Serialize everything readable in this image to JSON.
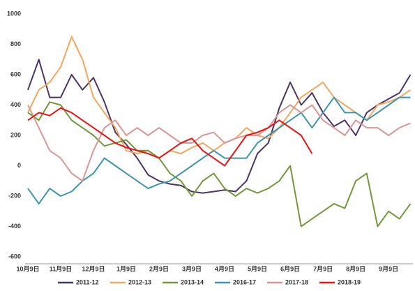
{
  "chart_data": {
    "type": "line",
    "categories": [
      "10月9日",
      null,
      null,
      "11月9日",
      null,
      null,
      "12月9日",
      null,
      null,
      "1月9日",
      null,
      null,
      "2月9日",
      null,
      null,
      "3月9日",
      null,
      null,
      "4月9日",
      null,
      null,
      "5月9日",
      null,
      null,
      "6月9日",
      null,
      null,
      "7月9日",
      null,
      null,
      "8月9日",
      null,
      null,
      "9月9日",
      null,
      null
    ],
    "series": [
      {
        "name": "2011-12",
        "color": "#4b3469",
        "values": [
          500,
          700,
          450,
          450,
          600,
          500,
          580,
          420,
          220,
          140,
          50,
          -60,
          -100,
          -120,
          -130,
          -170,
          -180,
          -170,
          -160,
          -170,
          -100,
          80,
          150,
          380,
          550,
          400,
          480,
          350,
          260,
          300,
          200,
          350,
          400,
          440,
          480,
          600
        ]
      },
      {
        "name": "2012-13",
        "color": "#f5a55c",
        "values": [
          350,
          500,
          550,
          650,
          850,
          700,
          450,
          350,
          250,
          100,
          80,
          100,
          50,
          100,
          80,
          120,
          150,
          100,
          150,
          180,
          250,
          200,
          180,
          250,
          350,
          450,
          500,
          550,
          450,
          400,
          350,
          300,
          400,
          420,
          450,
          500
        ]
      },
      {
        "name": "2013-14",
        "color": "#71993a",
        "values": [
          350,
          300,
          420,
          400,
          300,
          250,
          200,
          130,
          150,
          170,
          100,
          100,
          50,
          -50,
          -100,
          -200,
          -100,
          -50,
          -150,
          -200,
          -150,
          -180,
          -150,
          -100,
          0,
          -400,
          -350,
          -300,
          -250,
          -280,
          -100,
          -50,
          -400,
          -300,
          -350,
          -250
        ]
      },
      {
        "name": "2016-17",
        "color": "#3a95ad",
        "values": [
          -150,
          -250,
          -150,
          -200,
          -170,
          -100,
          -50,
          50,
          0,
          -50,
          -100,
          -150,
          -120,
          -100,
          -50,
          0,
          50,
          100,
          50,
          50,
          50,
          150,
          200,
          250,
          300,
          350,
          250,
          350,
          450,
          350,
          350,
          300,
          350,
          400,
          450,
          450
        ]
      },
      {
        "name": "2017-18",
        "color": "#d99694",
        "values": [
          400,
          250,
          100,
          50,
          -50,
          -100,
          100,
          250,
          300,
          200,
          250,
          200,
          250,
          200,
          150,
          150,
          200,
          220,
          150,
          180,
          200,
          200,
          250,
          350,
          400,
          350,
          400,
          300,
          250,
          200,
          300,
          250,
          250,
          200,
          250,
          280
        ]
      },
      {
        "name": "2018-19",
        "color": "#ee1111",
        "values": [
          300,
          350,
          330,
          380,
          350,
          300,
          250,
          200,
          150,
          120,
          100,
          80,
          50,
          100,
          150,
          180,
          100,
          50,
          0,
          100,
          200,
          220,
          250,
          300,
          250,
          200,
          80,
          null,
          null,
          null,
          null,
          null,
          null,
          null,
          null,
          null
        ]
      }
    ],
    "ylim": [
      -600,
      1000
    ],
    "yticks": [
      -600,
      -400,
      -200,
      0,
      200,
      400,
      600,
      800,
      1000
    ],
    "grid": false,
    "legend": "bottom"
  }
}
